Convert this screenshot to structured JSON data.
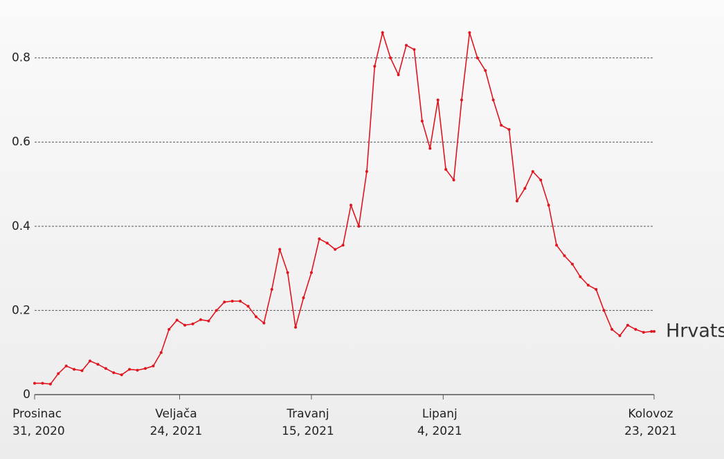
{
  "chart_data": {
    "type": "line",
    "x": [
      "2020-12-31",
      "2021-01-03",
      "2021-01-06",
      "2021-01-09",
      "2021-01-12",
      "2021-01-15",
      "2021-01-18",
      "2021-01-21",
      "2021-01-24",
      "2021-01-27",
      "2021-01-30",
      "2021-02-02",
      "2021-02-05",
      "2021-02-08",
      "2021-02-11",
      "2021-02-14",
      "2021-02-17",
      "2021-02-20",
      "2021-02-23",
      "2021-02-26",
      "2021-03-01",
      "2021-03-04",
      "2021-03-07",
      "2021-03-10",
      "2021-03-13",
      "2021-03-16",
      "2021-03-19",
      "2021-03-22",
      "2021-03-25",
      "2021-03-28",
      "2021-03-31",
      "2021-04-03",
      "2021-04-06",
      "2021-04-09",
      "2021-04-12",
      "2021-04-15",
      "2021-04-18",
      "2021-04-21",
      "2021-04-24",
      "2021-04-27",
      "2021-04-30",
      "2021-05-03",
      "2021-05-06",
      "2021-05-09",
      "2021-05-12",
      "2021-05-15",
      "2021-05-18",
      "2021-05-21",
      "2021-05-24",
      "2021-05-27",
      "2021-05-30",
      "2021-06-02",
      "2021-06-05",
      "2021-06-08",
      "2021-06-11",
      "2021-06-14",
      "2021-06-17",
      "2021-06-20",
      "2021-06-23",
      "2021-06-26",
      "2021-06-29",
      "2021-07-02",
      "2021-07-05",
      "2021-07-08",
      "2021-07-11",
      "2021-07-14",
      "2021-07-17",
      "2021-07-20",
      "2021-07-23",
      "2021-07-26",
      "2021-07-29",
      "2021-08-01",
      "2021-08-04",
      "2021-08-07",
      "2021-08-10",
      "2021-08-13",
      "2021-08-16",
      "2021-08-19",
      "2021-08-22",
      "2021-08-23"
    ],
    "series": [
      {
        "name": "Hrvats",
        "color": "#e0141e",
        "values": [
          0.027,
          0.027,
          0.025,
          0.05,
          0.068,
          0.06,
          0.057,
          0.08,
          0.072,
          0.062,
          0.052,
          0.047,
          0.06,
          0.058,
          0.062,
          0.068,
          0.1,
          0.155,
          0.177,
          0.165,
          0.168,
          0.178,
          0.175,
          0.2,
          0.22,
          0.222,
          0.222,
          0.21,
          0.185,
          0.17,
          0.25,
          0.345,
          0.29,
          0.16,
          0.23,
          0.29,
          0.37,
          0.36,
          0.345,
          0.355,
          0.45,
          0.4,
          0.53,
          0.78,
          0.86,
          0.8,
          0.76,
          0.83,
          0.82,
          0.65,
          0.585,
          0.7,
          0.535,
          0.51,
          0.7,
          0.86,
          0.8,
          0.77,
          0.7,
          0.64,
          0.63,
          0.46,
          0.49,
          0.53,
          0.51,
          0.45,
          0.355,
          0.33,
          0.31,
          0.28,
          0.26,
          0.25,
          0.2,
          0.155,
          0.14,
          0.165,
          0.155,
          0.148,
          0.15,
          0.15
        ]
      }
    ],
    "xlim": [
      "2020-12-31",
      "2021-08-23"
    ],
    "xticks": [
      {
        "value": "2020-12-31",
        "label": [
          "Prosinac",
          "31, 2020"
        ]
      },
      {
        "value": "2021-02-24",
        "label": [
          "Veljača",
          "24, 2021"
        ]
      },
      {
        "value": "2021-04-15",
        "label": [
          "Travanj",
          "15, 2021"
        ]
      },
      {
        "value": "2021-06-04",
        "label": [
          "Lipanj",
          "4, 2021"
        ]
      },
      {
        "value": "2021-08-23",
        "label": [
          "Kolovoz",
          "23, 2021"
        ]
      }
    ],
    "ylim": [
      0,
      0.88
    ],
    "yticks": [
      0,
      0.2,
      0.4,
      0.6,
      0.8
    ],
    "grid": true
  }
}
